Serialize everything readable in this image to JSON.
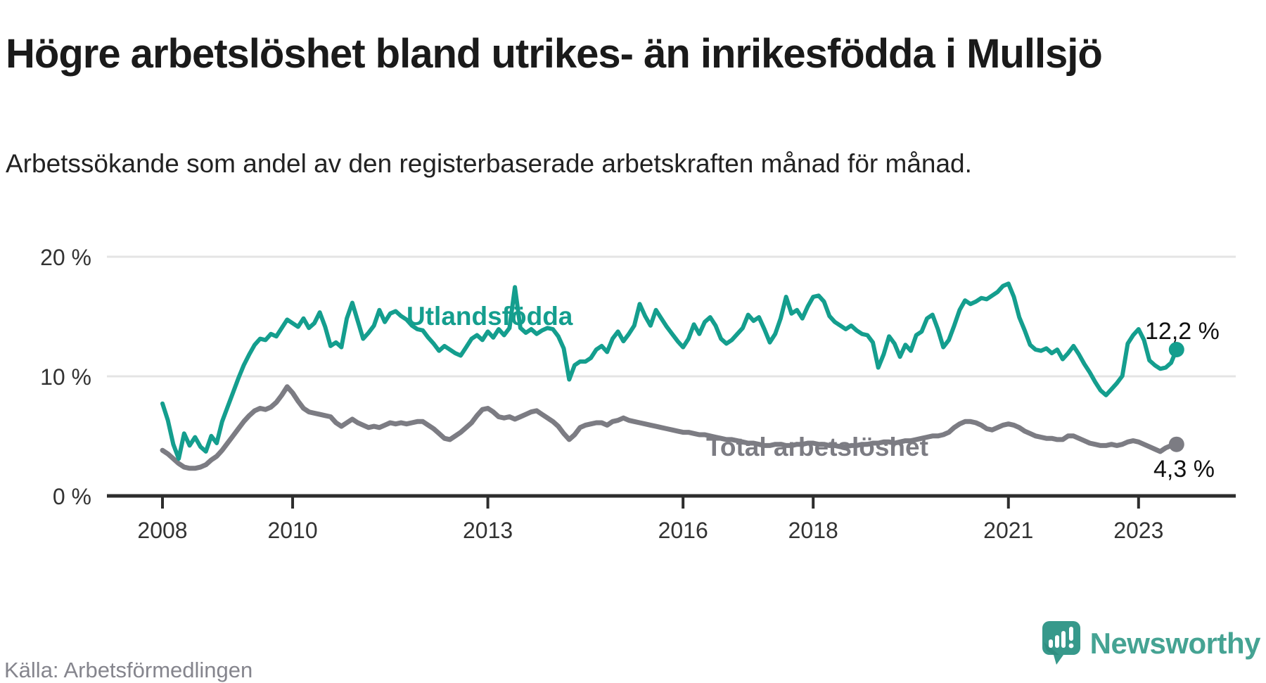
{
  "header": {
    "title": "Högre arbetslöshet bland utrikes- än inrikesfödda i Mullsjö",
    "subtitle": "Arbetssökande som andel av den registerbaserade arbetskraften månad för månad."
  },
  "footer": {
    "source": "Källa: Arbetsförmedlingen",
    "brand": "Newsworthy"
  },
  "colors": {
    "foreign_born_line": "#149e8e",
    "total_line": "#7c7c83",
    "grid": "#e4e4e4",
    "axis": "#2d2d2d",
    "title_text": "#1a1a1a",
    "muted_text": "#85858d",
    "brand_teal": "#45a393",
    "logo_bubble": "#37998b",
    "logo_bubble_shadow": "#2a8579"
  },
  "chart_data": {
    "type": "line",
    "unit": "%",
    "frequency": "monthly",
    "x_start": "2008-01",
    "x_end": "2023-08",
    "x_tick_years": [
      2008,
      2010,
      2013,
      2016,
      2018,
      2021,
      2023
    ],
    "y_ticks": [
      0,
      10,
      20
    ],
    "y_tick_labels": [
      "0 %",
      "10 %",
      "20 %"
    ],
    "ylim": [
      0,
      21
    ],
    "grid": "horizontal-only",
    "legend_position": "inline-labels",
    "series": [
      {
        "name": "Utlandsfödda",
        "color": "#149e8e",
        "end_value": 12.2,
        "end_label": "12,2 %",
        "values": [
          7.7,
          6.3,
          4.3,
          3.1,
          5.2,
          4.2,
          4.9,
          4.1,
          3.7,
          5.0,
          4.4,
          6.2,
          7.4,
          8.6,
          9.8,
          10.9,
          11.8,
          12.6,
          13.1,
          13.0,
          13.5,
          13.3,
          14.0,
          14.7,
          14.4,
          14.1,
          14.8,
          14.0,
          14.4,
          15.3,
          14.1,
          12.5,
          12.8,
          12.4,
          14.8,
          16.1,
          14.6,
          13.1,
          13.6,
          14.2,
          15.5,
          14.5,
          15.2,
          15.4,
          15.0,
          14.7,
          14.2,
          13.9,
          13.8,
          13.2,
          12.7,
          12.1,
          12.5,
          12.2,
          11.9,
          11.7,
          12.4,
          13.1,
          13.4,
          13.0,
          13.7,
          13.2,
          13.9,
          13.4,
          14.0,
          17.4,
          14.0,
          13.6,
          13.9,
          13.5,
          13.8,
          14.0,
          13.9,
          13.3,
          12.3,
          9.7,
          10.9,
          11.2,
          11.2,
          11.5,
          12.2,
          12.5,
          12.0,
          13.1,
          13.7,
          12.9,
          13.5,
          14.2,
          16.0,
          15.0,
          14.2,
          15.5,
          14.8,
          14.1,
          13.5,
          12.9,
          12.4,
          13.1,
          14.3,
          13.5,
          14.5,
          14.9,
          14.2,
          13.1,
          12.7,
          13.0,
          13.5,
          14.0,
          15.1,
          14.6,
          14.9,
          13.9,
          12.8,
          13.5,
          14.8,
          16.6,
          15.2,
          15.5,
          14.8,
          15.8,
          16.6,
          16.7,
          16.2,
          15.0,
          14.5,
          14.2,
          13.9,
          14.2,
          13.8,
          13.5,
          13.4,
          12.8,
          10.7,
          11.8,
          13.3,
          12.7,
          11.6,
          12.6,
          12.1,
          13.4,
          13.7,
          14.8,
          15.1,
          13.9,
          12.4,
          13.0,
          14.2,
          15.5,
          16.3,
          16.0,
          16.2,
          16.5,
          16.4,
          16.7,
          17.0,
          17.5,
          17.7,
          16.6,
          14.9,
          13.8,
          12.6,
          12.2,
          12.1,
          12.3,
          11.9,
          12.2,
          11.4,
          11.9,
          12.5,
          11.8,
          11.0,
          10.3,
          9.5,
          8.8,
          8.4,
          8.9,
          9.4,
          10.0,
          12.7,
          13.4,
          13.9,
          13.0,
          11.3,
          10.9,
          10.6,
          10.7,
          11.1,
          12.2
        ]
      },
      {
        "name": "Total arbetslöshet",
        "color": "#7c7c83",
        "end_value": 4.3,
        "end_label": "4,3 %",
        "values": [
          3.8,
          3.5,
          3.1,
          2.7,
          2.4,
          2.3,
          2.3,
          2.4,
          2.6,
          3.0,
          3.3,
          3.8,
          4.4,
          5.0,
          5.6,
          6.2,
          6.7,
          7.1,
          7.3,
          7.2,
          7.4,
          7.8,
          8.4,
          9.1,
          8.6,
          7.9,
          7.3,
          7.0,
          6.9,
          6.8,
          6.7,
          6.6,
          6.1,
          5.8,
          6.1,
          6.4,
          6.1,
          5.9,
          5.7,
          5.8,
          5.7,
          5.9,
          6.1,
          6.0,
          6.1,
          6.0,
          6.1,
          6.2,
          6.2,
          5.9,
          5.6,
          5.2,
          4.8,
          4.7,
          5.0,
          5.3,
          5.7,
          6.1,
          6.7,
          7.2,
          7.3,
          7.0,
          6.6,
          6.5,
          6.6,
          6.4,
          6.6,
          6.8,
          7.0,
          7.1,
          6.8,
          6.5,
          6.2,
          5.8,
          5.2,
          4.7,
          5.1,
          5.7,
          5.9,
          6.0,
          6.1,
          6.1,
          5.9,
          6.2,
          6.3,
          6.5,
          6.3,
          6.2,
          6.1,
          6.0,
          5.9,
          5.8,
          5.7,
          5.6,
          5.5,
          5.4,
          5.3,
          5.3,
          5.2,
          5.1,
          5.1,
          5.0,
          4.9,
          4.8,
          4.7,
          4.7,
          4.6,
          4.5,
          4.4,
          4.4,
          4.3,
          4.2,
          4.2,
          4.3,
          4.3,
          4.2,
          4.2,
          4.3,
          4.3,
          4.4,
          4.4,
          4.3,
          4.3,
          4.2,
          4.2,
          4.1,
          4.1,
          4.2,
          4.2,
          4.3,
          4.3,
          4.4,
          4.4,
          4.5,
          4.5,
          4.4,
          4.5,
          4.6,
          4.6,
          4.7,
          4.8,
          4.9,
          5.0,
          5.0,
          5.1,
          5.3,
          5.7,
          6.0,
          6.2,
          6.2,
          6.1,
          5.9,
          5.6,
          5.5,
          5.7,
          5.9,
          6.0,
          5.9,
          5.7,
          5.4,
          5.2,
          5.0,
          4.9,
          4.8,
          4.8,
          4.7,
          4.7,
          5.0,
          5.0,
          4.8,
          4.6,
          4.4,
          4.3,
          4.2,
          4.2,
          4.3,
          4.2,
          4.3,
          4.5,
          4.6,
          4.5,
          4.3,
          4.1,
          3.9,
          3.7,
          4.0,
          4.2,
          4.3
        ]
      }
    ]
  }
}
